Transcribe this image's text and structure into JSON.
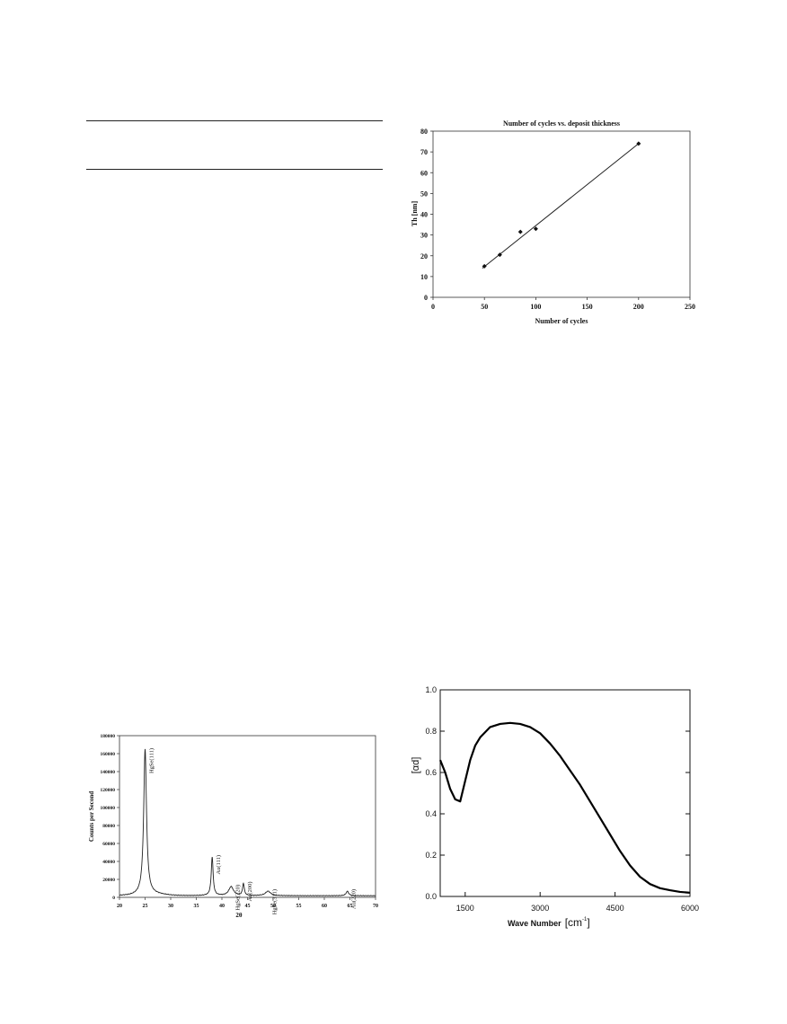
{
  "chart_data": [
    {
      "id": "thickness",
      "type": "scatter",
      "title": "Number of cycles vs. deposit thickness",
      "xlabel": "Number of cycles",
      "ylabel": "Th [nm]",
      "xlim": [
        0,
        250
      ],
      "ylim": [
        0,
        80
      ],
      "xticks": [
        0,
        50,
        100,
        150,
        200,
        250
      ],
      "yticks": [
        0,
        10,
        20,
        30,
        40,
        50,
        60,
        70,
        80
      ],
      "points": [
        {
          "x": 50,
          "y": 15
        },
        {
          "x": 65,
          "y": 20.5
        },
        {
          "x": 85,
          "y": 31.5
        },
        {
          "x": 100,
          "y": 33
        },
        {
          "x": 200,
          "y": 74
        }
      ],
      "fit_line": [
        {
          "x": 48,
          "y": 14
        },
        {
          "x": 200,
          "y": 74
        }
      ],
      "grid": false,
      "legend": "none"
    },
    {
      "id": "xrd",
      "type": "line",
      "xlabel": "2θ",
      "ylabel": "Counts per Second",
      "xlim": [
        20,
        70
      ],
      "ylim": [
        0,
        180000
      ],
      "xticks": [
        20,
        25,
        30,
        35,
        40,
        45,
        50,
        55,
        60,
        65,
        70
      ],
      "yticks": [
        0,
        20000,
        40000,
        60000,
        80000,
        100000,
        120000,
        140000,
        160000,
        180000
      ],
      "baseline": 1800,
      "peaks": [
        {
          "label": "HgSe(111)",
          "x": 25.0,
          "y": 162000,
          "w": 0.33
        },
        {
          "label": "Au(111)",
          "x": 38.1,
          "y": 43000,
          "w": 0.22
        },
        {
          "label": "HgSe(220)",
          "x": 41.8,
          "y": 10000,
          "w": 0.55
        },
        {
          "label": "Au(200)",
          "x": 44.2,
          "y": 13500,
          "w": 0.2
        },
        {
          "label": "HgSe(311)",
          "x": 49.0,
          "y": 5000,
          "w": 0.6
        },
        {
          "label": "Au(220)",
          "x": 64.5,
          "y": 5000,
          "w": 0.3
        }
      ],
      "grid": false,
      "legend": "none"
    },
    {
      "id": "absorption",
      "type": "line",
      "xlabel": "Wave Number",
      "xunit": "[cm",
      "xunit_sup": "-1",
      "xunit_close": "]",
      "ylabel": "[αd]",
      "xlim": [
        1000,
        6000
      ],
      "ylim": [
        0,
        1.0
      ],
      "xticks": [
        1500,
        3000,
        4500,
        6000
      ],
      "yticks": [
        0.0,
        0.2,
        0.4,
        0.6,
        0.8,
        1.0
      ],
      "x": [
        1000,
        1100,
        1200,
        1300,
        1400,
        1500,
        1600,
        1700,
        1800,
        2000,
        2200,
        2400,
        2600,
        2800,
        3000,
        3200,
        3400,
        3600,
        3800,
        4000,
        4200,
        4400,
        4600,
        4800,
        5000,
        5200,
        5400,
        5600,
        5800,
        6000
      ],
      "y": [
        0.66,
        0.6,
        0.52,
        0.47,
        0.46,
        0.56,
        0.66,
        0.73,
        0.77,
        0.82,
        0.835,
        0.84,
        0.835,
        0.82,
        0.79,
        0.74,
        0.68,
        0.61,
        0.54,
        0.46,
        0.38,
        0.3,
        0.22,
        0.15,
        0.095,
        0.06,
        0.04,
        0.03,
        0.022,
        0.018
      ],
      "grid": false,
      "legend": "none"
    }
  ]
}
